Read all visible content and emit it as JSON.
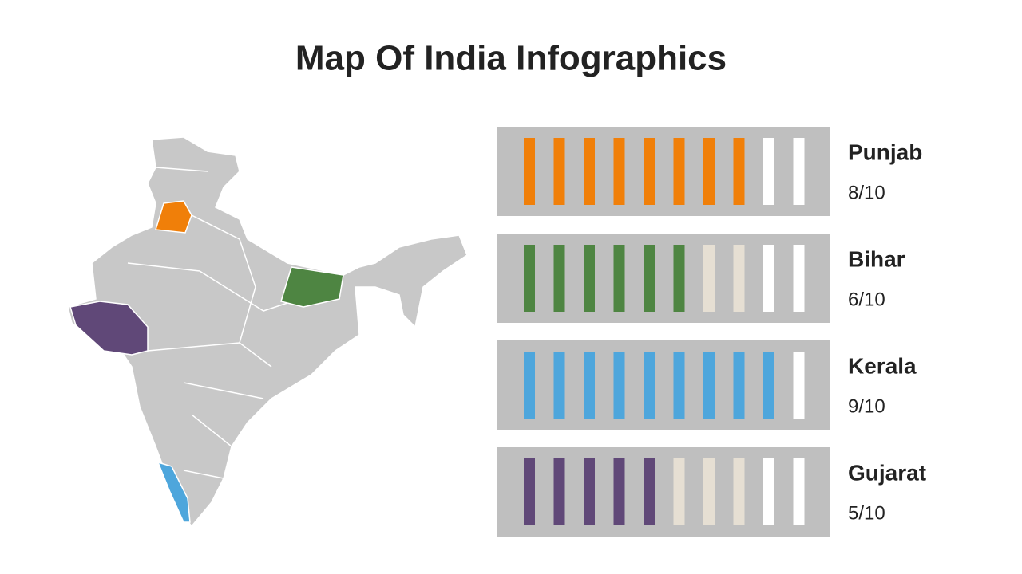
{
  "title": "Map Of India Infographics",
  "items": [
    {
      "name": "Punjab",
      "score": 8,
      "max": 10,
      "label": "8/10",
      "color": "#f07f09"
    },
    {
      "name": "Bihar",
      "score": 6,
      "max": 10,
      "label": "6/10",
      "color": "#4e8542"
    },
    {
      "name": "Kerala",
      "score": 9,
      "max": 10,
      "label": "9/10",
      "color": "#4ea6dc"
    },
    {
      "name": "Gujarat",
      "score": 5,
      "max": 10,
      "label": "5/10",
      "color": "#604878"
    }
  ]
}
